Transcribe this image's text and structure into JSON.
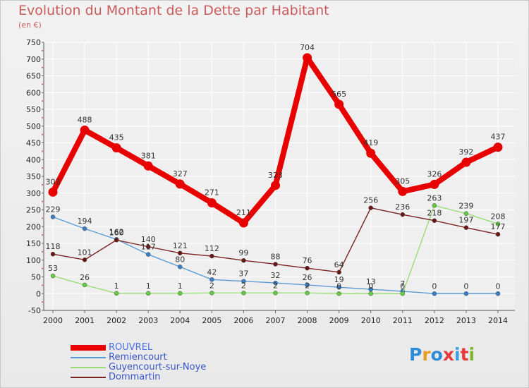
{
  "title": "Evolution du Montant de la Dette par Habitant",
  "subtitle": "(en €)",
  "logo": {
    "text": "Proxiti",
    "letter_colors": [
      "#2e8bd6",
      "#e6a020",
      "#2e8bd6",
      "#e63b3b",
      "#3aa0e0",
      "#e63b3b",
      "#7ab82e"
    ]
  },
  "chart_data": {
    "type": "line",
    "title": "Evolution du Montant de la Dette par Habitant",
    "ylabel": "(en €)",
    "xlabel": "",
    "x": [
      2000,
      2001,
      2002,
      2003,
      2004,
      2005,
      2006,
      2007,
      2008,
      2009,
      2010,
      2011,
      2012,
      2013,
      2014
    ],
    "ylim": [
      -50,
      750
    ],
    "yticks": [
      -50,
      0,
      50,
      100,
      150,
      200,
      250,
      300,
      350,
      400,
      450,
      500,
      550,
      600,
      650,
      700,
      750
    ],
    "grid": true,
    "legend_position": "bottom-left",
    "series": [
      {
        "name": "ROUVREL",
        "color": "#e80000",
        "marker": "#e80000",
        "values": [
          303,
          488,
          435,
          381,
          327,
          271,
          211,
          323,
          704,
          565,
          419,
          305,
          326,
          392,
          437
        ],
        "labels": [
          "303",
          "488",
          "435",
          "381",
          "327",
          "271",
          "211",
          "323",
          "704",
          "565",
          "419",
          "305",
          "326",
          "392",
          "437"
        ]
      },
      {
        "name": "Remiencourt",
        "color": "#5a9bd5",
        "marker": "#3a7fc8",
        "values": [
          229,
          194,
          162,
          117,
          80,
          42,
          37,
          32,
          26,
          19,
          13,
          7,
          0,
          0,
          0
        ],
        "labels": [
          "229",
          "194",
          "162",
          "117",
          "80",
          "42",
          "37",
          "32",
          "26",
          "19",
          "13",
          "7",
          "0",
          "0",
          "0"
        ]
      },
      {
        "name": "Guyencourt-sur-Noye",
        "color": "#99dd77",
        "marker": "#66cc44",
        "values": [
          53,
          26,
          1,
          1,
          1,
          2,
          2,
          2,
          2,
          0,
          0,
          0,
          263,
          239,
          208
        ],
        "labels": [
          "53",
          "26",
          "1",
          "1",
          "1",
          "2",
          "2",
          "2",
          "2",
          "0",
          "0",
          "0",
          "263",
          "239",
          "208"
        ]
      },
      {
        "name": "Dommartin",
        "color": "#7a2020",
        "marker": "#6a1515",
        "values": [
          118,
          101,
          160,
          140,
          121,
          112,
          99,
          88,
          76,
          64,
          256,
          236,
          218,
          197,
          177
        ],
        "labels": [
          "118",
          "101",
          "160",
          "140",
          "121",
          "112",
          "99",
          "88",
          "76",
          "64",
          "256",
          "236",
          "218",
          "197",
          "177"
        ]
      }
    ]
  }
}
